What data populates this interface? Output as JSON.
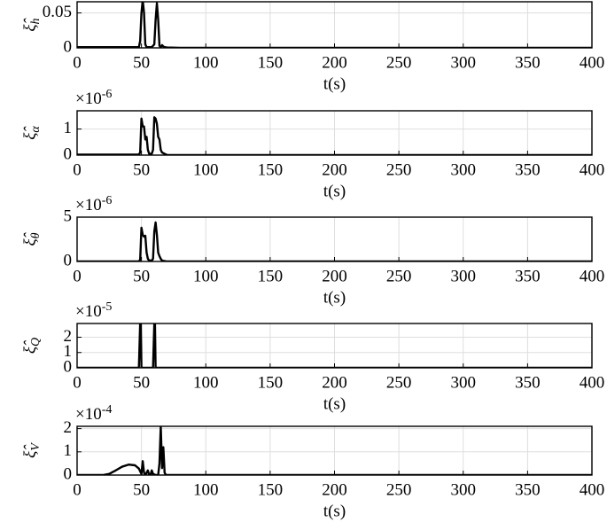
{
  "chart_data": [
    {
      "type": "line",
      "ylabel": {
        "symbol": "ξ̂",
        "subscript": "h"
      },
      "xlabel": "t(s)",
      "x": [
        0,
        40,
        48,
        49,
        50,
        51,
        52,
        53,
        54,
        58,
        60,
        61,
        62,
        63,
        64,
        65,
        66,
        67,
        68,
        70,
        80,
        400
      ],
      "values": [
        0.001,
        0.001,
        0.001,
        0.01,
        0.05,
        0.068,
        0.05,
        0.005,
        0.001,
        0.001,
        0.005,
        0.04,
        0.064,
        0.04,
        0.003,
        0.001,
        0.004,
        0.002,
        0.001,
        0.0005,
        0,
        0
      ],
      "color": "#000000",
      "xlim": [
        0,
        400
      ],
      "xticks": [
        0,
        50,
        100,
        150,
        200,
        250,
        300,
        350,
        400
      ],
      "ylim": [
        0,
        0.066
      ],
      "yticks": [
        0,
        0.05
      ],
      "grid": true
    },
    {
      "type": "line",
      "ylabel": {
        "symbol": "ξ̂",
        "subscript": "α"
      },
      "xlabel": "t(s)",
      "multiplier": {
        "base": "×10",
        "exponent": "-6"
      },
      "x": [
        0,
        48,
        49,
        50,
        51,
        52,
        53,
        54,
        55,
        56,
        58,
        59,
        60,
        61,
        62,
        63,
        64,
        65,
        66,
        68,
        70,
        400
      ],
      "values": [
        0.02,
        0.02,
        0.1,
        1.4,
        1.1,
        1.1,
        0.6,
        0.7,
        0.2,
        0.05,
        0.05,
        0.2,
        1.45,
        1.4,
        1.2,
        0.7,
        0.6,
        0.2,
        0.1,
        0.05,
        0,
        0
      ],
      "color": "#000000",
      "xlim": [
        0,
        400
      ],
      "xticks": [
        0,
        50,
        100,
        150,
        200,
        250,
        300,
        350,
        400
      ],
      "ylim": [
        0,
        1.7
      ],
      "yticks": [
        0,
        1
      ],
      "grid": true
    },
    {
      "type": "line",
      "ylabel": {
        "symbol": "ξ̂",
        "subscript": "θ"
      },
      "xlabel": "t(s)",
      "multiplier": {
        "base": "×10",
        "exponent": "-6"
      },
      "x": [
        0,
        48,
        49,
        50,
        51,
        52,
        53,
        54,
        55,
        56,
        58,
        59,
        60,
        61,
        62,
        63,
        64,
        65,
        66,
        68,
        70,
        400
      ],
      "values": [
        0,
        0,
        0.2,
        3.8,
        3,
        2.8,
        2.9,
        1,
        0.3,
        0.1,
        0.1,
        0.3,
        3.4,
        4.4,
        3,
        1,
        0.6,
        0.3,
        0.1,
        0.05,
        0,
        0
      ],
      "color": "#000000",
      "xlim": [
        0,
        400
      ],
      "xticks": [
        0,
        50,
        100,
        150,
        200,
        250,
        300,
        350,
        400
      ],
      "ylim": [
        0,
        5
      ],
      "yticks": [
        0,
        5
      ],
      "grid": true
    },
    {
      "type": "line",
      "ylabel": {
        "symbol": "ξ̂",
        "subscript": "Q"
      },
      "xlabel": "t(s)",
      "multiplier": {
        "base": "×10",
        "exponent": "-5"
      },
      "x": [
        0,
        48,
        49,
        49.5,
        50,
        59,
        60,
        60.5,
        61,
        400
      ],
      "values": [
        0,
        0,
        2.9,
        2.9,
        0,
        0,
        2.9,
        2.9,
        0,
        0
      ],
      "color": "#000000",
      "xlim": [
        0,
        400
      ],
      "xticks": [
        0,
        50,
        100,
        150,
        200,
        250,
        300,
        350,
        400
      ],
      "ylim": [
        0,
        2.9
      ],
      "yticks": [
        0,
        1,
        2
      ],
      "grid": true
    },
    {
      "type": "line",
      "ylabel": {
        "symbol": "ξ̂",
        "subscript": "V"
      },
      "xlabel": "t(s)",
      "multiplier": {
        "base": "×10",
        "exponent": "-4"
      },
      "x": [
        0,
        20,
        25,
        30,
        35,
        40,
        45,
        48,
        50,
        51,
        52,
        53,
        55,
        56,
        57,
        58,
        59,
        61,
        63,
        64,
        65,
        66,
        67,
        68,
        69,
        70,
        400
      ],
      "values": [
        0,
        0,
        0.05,
        0.2,
        0.36,
        0.45,
        0.42,
        0.28,
        0.05,
        0.6,
        0.1,
        0,
        0.2,
        0,
        0,
        0.2,
        0.05,
        0,
        0,
        0.5,
        2.1,
        0.3,
        1.2,
        0.1,
        0,
        0,
        0
      ],
      "color": "#000000",
      "xlim": [
        0,
        400
      ],
      "xticks": [
        0,
        50,
        100,
        150,
        200,
        250,
        300,
        350,
        400
      ],
      "ylim": [
        0,
        2.1
      ],
      "yticks": [
        0,
        1,
        2
      ],
      "grid": true
    }
  ]
}
